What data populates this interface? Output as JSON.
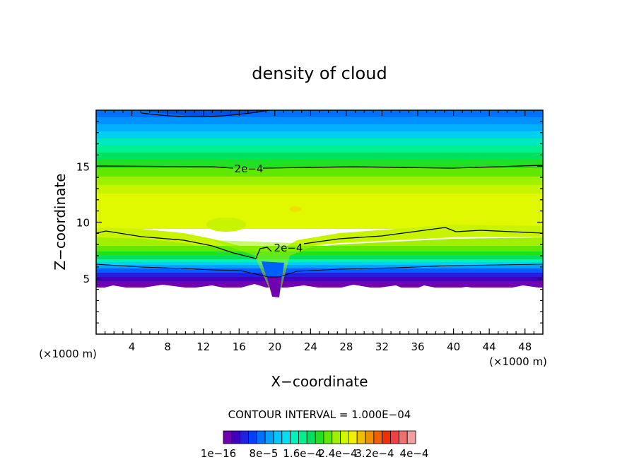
{
  "chart_data": {
    "type": "heatmap",
    "title": "density of cloud",
    "xlabel": "X−coordinate",
    "ylabel": "Z−coordinate",
    "x_unit_left": "(×1000 m)",
    "x_unit_right": "(×1000 m)",
    "xlim": [
      0,
      50
    ],
    "ylim": [
      0,
      20
    ],
    "x_ticks": [
      "4",
      "8",
      "12",
      "16",
      "20",
      "24",
      "28",
      "32",
      "36",
      "40",
      "44",
      "48"
    ],
    "y_ticks": [
      "5",
      "10",
      "15"
    ],
    "contour_interval_text": "CONTOUR INTERVAL = 1.000E−04",
    "contour_labels": [
      "2e−4",
      "2e−4"
    ],
    "colorbar_labels": [
      "1e−16",
      "8e−5",
      "1.6e−4",
      "2.4e−4",
      "3.2e−4",
      "4e−4"
    ],
    "colorbar_colors": [
      "#7000b0",
      "#4000c0",
      "#2020e0",
      "#0040ff",
      "#0070ff",
      "#00a0ff",
      "#00c8ff",
      "#00e0f0",
      "#00f0c0",
      "#00f090",
      "#00e060",
      "#20e020",
      "#60e800",
      "#a0f000",
      "#d0f800",
      "#f0f000",
      "#f0c000",
      "#f09000",
      "#f06000",
      "#f03000",
      "#f04040",
      "#f07070",
      "#f0a0a0"
    ],
    "fields": [
      {
        "z_range": [
          0,
          3.5
        ],
        "level": "below 1e-16 (no cloud)"
      },
      {
        "z_range": [
          4,
          6
        ],
        "level": "1e-16 to 1e-4"
      },
      {
        "z_range": [
          6,
          9
        ],
        "level": "1e-4 to 2e-4"
      },
      {
        "z_range": [
          9,
          14
        ],
        "level": "2.4e-4 to 2.8e-4 (max)"
      },
      {
        "z_range": [
          15,
          15
        ],
        "level": "2e-4 contour"
      },
      {
        "z_range": [
          18,
          20
        ],
        "level": "below 1.2e-4"
      }
    ]
  }
}
